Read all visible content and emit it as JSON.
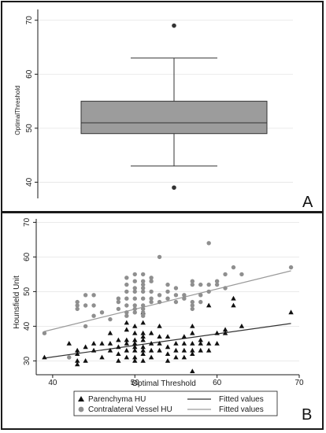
{
  "panels": {
    "a_label": "A",
    "b_label": "B"
  },
  "chart_data": [
    {
      "type": "box",
      "panel": "A",
      "ylabel": "OptimalThreshold",
      "xlabel": "",
      "ylim": [
        37,
        72
      ],
      "yticks": [
        40,
        50,
        60,
        70
      ],
      "box": {
        "whisker_low": 43,
        "q1": 49,
        "median": 51,
        "q3": 55,
        "whisker_high": 63,
        "outliers": [
          69,
          39
        ]
      },
      "colors": {
        "box_fill": "#9c9c9c",
        "line": "#333333",
        "outlier": "#333333"
      },
      "grid": true
    },
    {
      "type": "scatter",
      "panel": "B",
      "xlabel": "Optimal Threshold",
      "ylabel": "Hounsfield Unit",
      "xlim": [
        38,
        70
      ],
      "ylim": [
        26,
        71
      ],
      "xticks": [
        40,
        50,
        60,
        70
      ],
      "yticks": [
        30,
        40,
        50,
        60,
        70
      ],
      "grid": true,
      "legend_position": "bottom",
      "series": [
        {
          "name": "Parenchyma HU",
          "marker": "triangle",
          "color": "#111111",
          "points": [
            [
              39,
              31
            ],
            [
              42,
              35
            ],
            [
              43,
              33
            ],
            [
              43,
              32
            ],
            [
              43,
              30
            ],
            [
              43,
              29
            ],
            [
              44,
              34
            ],
            [
              44,
              30
            ],
            [
              45,
              35
            ],
            [
              45,
              33
            ],
            [
              46,
              35
            ],
            [
              46,
              31
            ],
            [
              47,
              38
            ],
            [
              47,
              35
            ],
            [
              47,
              33
            ],
            [
              48,
              36
            ],
            [
              48,
              34
            ],
            [
              48,
              32
            ],
            [
              48,
              30
            ],
            [
              49,
              41
            ],
            [
              49,
              39
            ],
            [
              49,
              36
            ],
            [
              49,
              35
            ],
            [
              49,
              33
            ],
            [
              49,
              31
            ],
            [
              50,
              40
            ],
            [
              50,
              38
            ],
            [
              50,
              36
            ],
            [
              50,
              35
            ],
            [
              50,
              34
            ],
            [
              50,
              33
            ],
            [
              50,
              31
            ],
            [
              50,
              30
            ],
            [
              51,
              44
            ],
            [
              51,
              41
            ],
            [
              51,
              38
            ],
            [
              51,
              37
            ],
            [
              51,
              36
            ],
            [
              51,
              34
            ],
            [
              51,
              33
            ],
            [
              51,
              32
            ],
            [
              51,
              30
            ],
            [
              52,
              38
            ],
            [
              52,
              35
            ],
            [
              52,
              33
            ],
            [
              52,
              31
            ],
            [
              53,
              40
            ],
            [
              53,
              37
            ],
            [
              53,
              35
            ],
            [
              53,
              33
            ],
            [
              54,
              37
            ],
            [
              54,
              34
            ],
            [
              54,
              32
            ],
            [
              54,
              30
            ],
            [
              55,
              35
            ],
            [
              55,
              33
            ],
            [
              55,
              31
            ],
            [
              56,
              37
            ],
            [
              56,
              35
            ],
            [
              56,
              33
            ],
            [
              56,
              31
            ],
            [
              57,
              40
            ],
            [
              57,
              38
            ],
            [
              57,
              35
            ],
            [
              57,
              33
            ],
            [
              57,
              32
            ],
            [
              57,
              27
            ],
            [
              58,
              36
            ],
            [
              58,
              35
            ],
            [
              58,
              33
            ],
            [
              59,
              46
            ],
            [
              59,
              35
            ],
            [
              59,
              33
            ],
            [
              60,
              38
            ],
            [
              60,
              35
            ],
            [
              61,
              39
            ],
            [
              61,
              38
            ],
            [
              62,
              48
            ],
            [
              62,
              46
            ],
            [
              63,
              40
            ],
            [
              69,
              44
            ]
          ]
        },
        {
          "name": "Contralateral Vessel HU",
          "marker": "circle",
          "color": "#8f8f8f",
          "points": [
            [
              39,
              38
            ],
            [
              42,
              31
            ],
            [
              43,
              47
            ],
            [
              43,
              46
            ],
            [
              43,
              45
            ],
            [
              44,
              49
            ],
            [
              44,
              46
            ],
            [
              44,
              40
            ],
            [
              45,
              49
            ],
            [
              45,
              46
            ],
            [
              45,
              43
            ],
            [
              46,
              44
            ],
            [
              47,
              42
            ],
            [
              48,
              48
            ],
            [
              48,
              47
            ],
            [
              48,
              45
            ],
            [
              49,
              54
            ],
            [
              49,
              52
            ],
            [
              49,
              50
            ],
            [
              49,
              48
            ],
            [
              49,
              46
            ],
            [
              49,
              44
            ],
            [
              49,
              43
            ],
            [
              50,
              55
            ],
            [
              50,
              53
            ],
            [
              50,
              51
            ],
            [
              50,
              50
            ],
            [
              50,
              48
            ],
            [
              50,
              46
            ],
            [
              50,
              45
            ],
            [
              50,
              44
            ],
            [
              51,
              55
            ],
            [
              51,
              53
            ],
            [
              51,
              52
            ],
            [
              51,
              51
            ],
            [
              51,
              50
            ],
            [
              51,
              48
            ],
            [
              51,
              46
            ],
            [
              51,
              45
            ],
            [
              51,
              44
            ],
            [
              51,
              43
            ],
            [
              52,
              54
            ],
            [
              52,
              53
            ],
            [
              52,
              50
            ],
            [
              52,
              48
            ],
            [
              52,
              47
            ],
            [
              53,
              60
            ],
            [
              53,
              49
            ],
            [
              53,
              47
            ],
            [
              54,
              52
            ],
            [
              54,
              50
            ],
            [
              54,
              48
            ],
            [
              55,
              51
            ],
            [
              55,
              49
            ],
            [
              55,
              47
            ],
            [
              56,
              49
            ],
            [
              56,
              48
            ],
            [
              57,
              53
            ],
            [
              57,
              52
            ],
            [
              57,
              47
            ],
            [
              57,
              46
            ],
            [
              57,
              45
            ],
            [
              58,
              52
            ],
            [
              58,
              49
            ],
            [
              58,
              47
            ],
            [
              59,
              64
            ],
            [
              59,
              52
            ],
            [
              59,
              50
            ],
            [
              60,
              53
            ],
            [
              60,
              52
            ],
            [
              61,
              55
            ],
            [
              61,
              51
            ],
            [
              62,
              57
            ],
            [
              63,
              55
            ],
            [
              69,
              57
            ]
          ]
        },
        {
          "name": "Fitted values",
          "type": "line",
          "color": "#333333",
          "points": [
            [
              39,
              30.8
            ],
            [
              69,
              40.8
            ]
          ]
        },
        {
          "name": "Fitted values",
          "type": "line",
          "color": "#9a9a9a",
          "points": [
            [
              39,
              38.5
            ],
            [
              69,
              56
            ]
          ]
        }
      ]
    }
  ]
}
